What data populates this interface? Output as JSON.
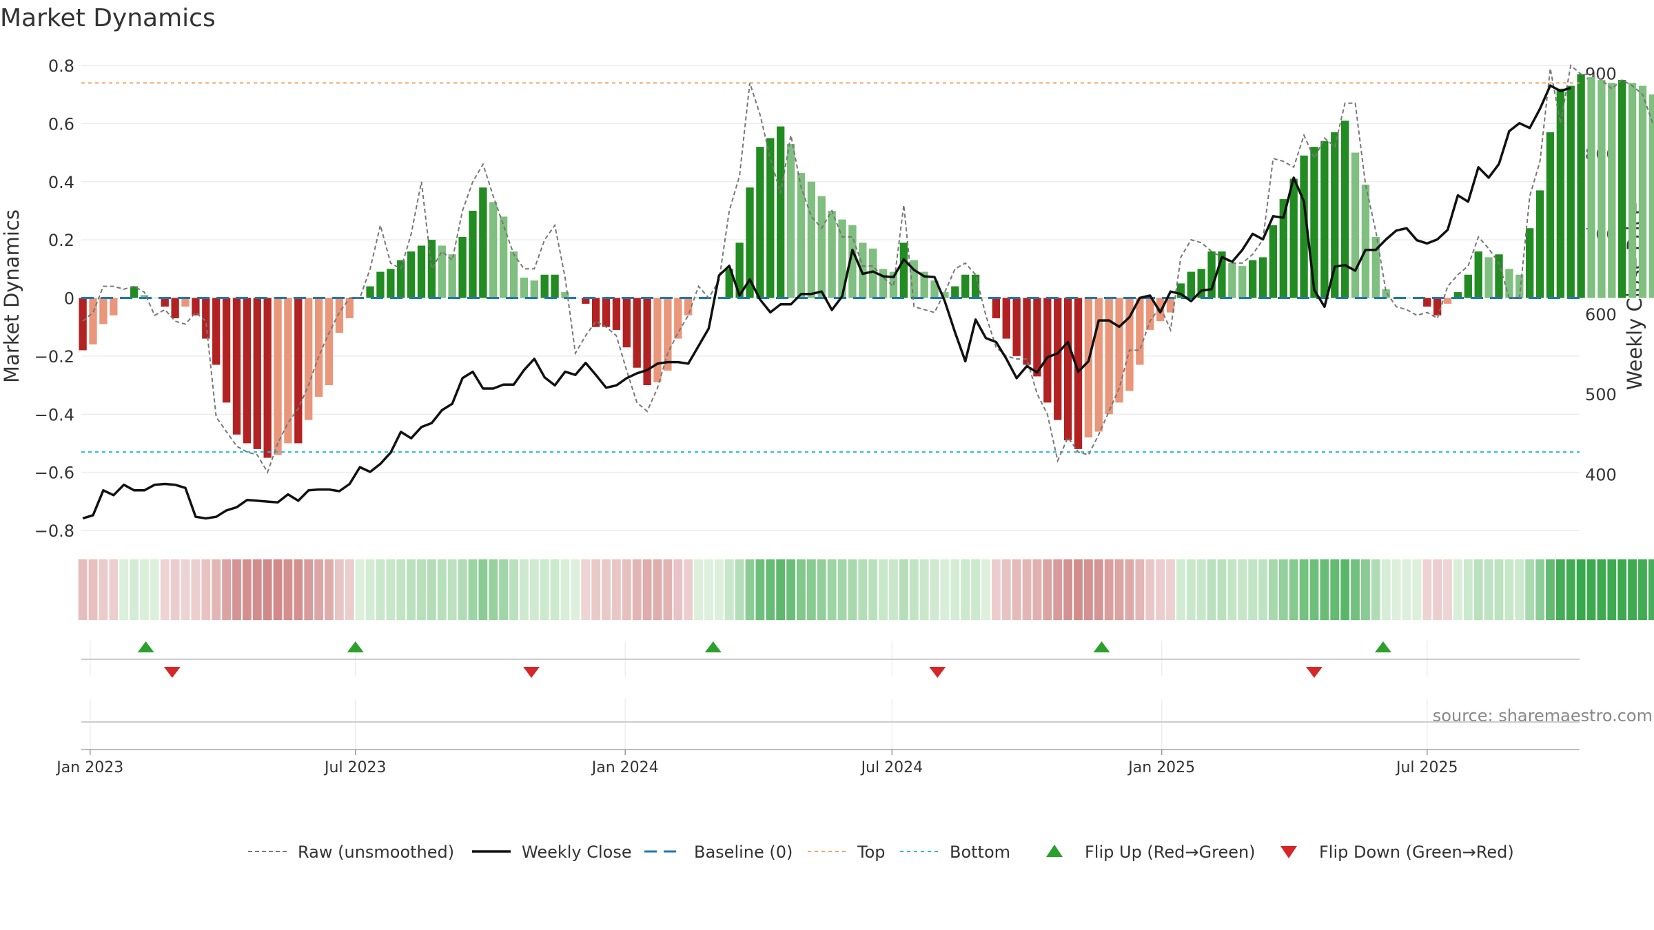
{
  "title": "Market Dynamics",
  "source_note": "source: sharemaestro.com",
  "chart_data": {
    "type": "bar",
    "title": "Market Dynamics",
    "ylabel": "Market Dynamics",
    "y2label": "Weekly Close Price",
    "ylim": [
      -0.8,
      0.8
    ],
    "y2lim": [
      330,
      910
    ],
    "yticks": [
      "0.8",
      "0.6",
      "0.4",
      "0.2",
      "0",
      "−0.2",
      "−0.4",
      "−0.6",
      "−0.8"
    ],
    "y2ticks": [
      "900",
      "800",
      "700",
      "600",
      "500",
      "400"
    ],
    "x_start": "2022-12-26",
    "x_end": "2025-10-13",
    "xticks": [
      {
        "date": "2023-01-01",
        "label": "Jan 2023"
      },
      {
        "date": "2023-07-01",
        "label": "Jul 2023"
      },
      {
        "date": "2024-01-01",
        "label": "Jan 2024"
      },
      {
        "date": "2024-07-01",
        "label": "Jul 2024"
      },
      {
        "date": "2025-01-01",
        "label": "Jan 2025"
      },
      {
        "date": "2025-07-01",
        "label": "Jul 2025"
      }
    ],
    "first_week": "2022-12-27",
    "top_threshold": 0.74,
    "bottom_threshold": -0.53,
    "baseline": 0,
    "colors": {
      "strong_green": "#228b22",
      "weak_green": "#7fbf7f",
      "strong_red": "#b22222",
      "weak_red": "#e9967a",
      "close": "#111111",
      "raw": "#777777",
      "baseline": "#1f77b4",
      "top": "#f4a460",
      "bottom": "#17becf",
      "flip_up": "#2ca02c",
      "flip_down": "#d62728"
    },
    "dynamics": [
      -0.18,
      -0.16,
      -0.09,
      -0.06,
      0.0,
      0.04,
      0.01,
      0.0,
      -0.03,
      -0.07,
      -0.03,
      -0.06,
      -0.14,
      -0.23,
      -0.36,
      -0.47,
      -0.5,
      -0.52,
      -0.55,
      -0.54,
      -0.5,
      -0.5,
      -0.42,
      -0.34,
      -0.3,
      -0.12,
      -0.07,
      0.0,
      0.04,
      0.09,
      0.1,
      0.13,
      0.16,
      0.18,
      0.2,
      0.18,
      0.15,
      0.21,
      0.3,
      0.38,
      0.33,
      0.28,
      0.16,
      0.07,
      0.06,
      0.08,
      0.08,
      0.02,
      0.0,
      -0.02,
      -0.1,
      -0.1,
      -0.11,
      -0.17,
      -0.24,
      -0.3,
      -0.29,
      -0.25,
      -0.14,
      -0.06,
      0.0,
      0.0,
      0.0,
      0.1,
      0.19,
      0.38,
      0.52,
      0.55,
      0.59,
      0.53,
      0.43,
      0.4,
      0.35,
      0.3,
      0.27,
      0.25,
      0.19,
      0.17,
      0.1,
      0.09,
      0.19,
      0.13,
      0.09,
      0.06,
      0.02,
      0.04,
      0.08,
      0.08,
      0.0,
      -0.07,
      -0.14,
      -0.2,
      -0.23,
      -0.27,
      -0.36,
      -0.42,
      -0.49,
      -0.52,
      -0.48,
      -0.46,
      -0.4,
      -0.36,
      -0.32,
      -0.23,
      -0.11,
      -0.08,
      -0.05,
      0.05,
      0.09,
      0.1,
      0.16,
      0.16,
      0.12,
      0.11,
      0.13,
      0.14,
      0.25,
      0.34,
      0.41,
      0.49,
      0.52,
      0.54,
      0.57,
      0.61,
      0.5,
      0.39,
      0.21,
      0.03,
      0.0,
      0.0,
      0.0,
      -0.03,
      -0.06,
      -0.02,
      0.02,
      0.08,
      0.16,
      0.14,
      0.15,
      0.1,
      0.08,
      0.24,
      0.37,
      0.57,
      0.72,
      0.73,
      0.77,
      0.76,
      0.75,
      0.74,
      0.75,
      0.74,
      0.73,
      0.7
    ],
    "raw": [
      -0.08,
      -0.05,
      0.04,
      0.04,
      0.03,
      0.04,
      0.02,
      -0.06,
      -0.04,
      -0.08,
      -0.09,
      -0.05,
      -0.08,
      -0.41,
      -0.46,
      -0.51,
      -0.53,
      -0.54,
      -0.6,
      -0.5,
      -0.43,
      -0.38,
      -0.3,
      -0.2,
      -0.12,
      -0.05,
      0.0,
      0.0,
      0.1,
      0.25,
      0.12,
      0.1,
      0.22,
      0.4,
      0.1,
      0.16,
      0.13,
      0.3,
      0.4,
      0.46,
      0.35,
      0.25,
      0.15,
      0.1,
      0.1,
      0.2,
      0.25,
      0.07,
      -0.19,
      -0.13,
      -0.08,
      -0.1,
      -0.13,
      -0.25,
      -0.36,
      -0.39,
      -0.31,
      -0.19,
      -0.12,
      -0.06,
      0.04,
      0.0,
      0.06,
      0.3,
      0.42,
      0.74,
      0.63,
      0.48,
      0.36,
      0.56,
      0.38,
      0.28,
      0.24,
      0.3,
      0.21,
      0.21,
      0.11,
      0.11,
      0.07,
      0.04,
      0.32,
      -0.03,
      -0.04,
      -0.05,
      0.02,
      0.1,
      0.12,
      0.08,
      -0.06,
      -0.17,
      -0.2,
      -0.21,
      -0.21,
      -0.33,
      -0.4,
      -0.56,
      -0.48,
      -0.53,
      -0.54,
      -0.47,
      -0.39,
      -0.31,
      -0.18,
      -0.18,
      -0.08,
      -0.03,
      -0.11,
      0.14,
      0.2,
      0.19,
      0.16,
      0.14,
      0.12,
      0.12,
      0.15,
      0.2,
      0.48,
      0.47,
      0.45,
      0.56,
      0.48,
      0.55,
      0.52,
      0.67,
      0.67,
      0.39,
      0.23,
      0.02,
      -0.03,
      -0.04,
      -0.06,
      -0.05,
      -0.07,
      0.04,
      0.08,
      0.11,
      0.21,
      0.17,
      0.12,
      0.0,
      0.0,
      0.35,
      0.47,
      0.79,
      0.6,
      0.8,
      0.77,
      0.77,
      0.75,
      0.72,
      0.75,
      0.73,
      0.7,
      0.6
    ],
    "close": [
      345,
      349,
      380,
      374,
      387,
      380,
      380,
      387,
      388,
      387,
      383,
      347,
      345,
      347,
      355,
      359,
      368,
      367,
      366,
      365,
      375,
      367,
      380,
      381,
      381,
      379,
      388,
      409,
      403,
      413,
      427,
      453,
      445,
      459,
      464,
      480,
      488,
      520,
      528,
      507,
      507,
      512,
      512,
      530,
      544,
      521,
      511,
      528,
      524,
      539,
      524,
      508,
      511,
      520,
      526,
      530,
      538,
      540,
      540,
      538,
      560,
      582,
      648,
      660,
      623,
      643,
      618,
      602,
      612,
      612,
      625,
      625,
      628,
      605,
      622,
      680,
      650,
      653,
      647,
      646,
      668,
      655,
      647,
      646,
      616,
      577,
      541,
      593,
      570,
      565,
      544,
      520,
      535,
      527,
      546,
      551,
      565,
      528,
      541,
      592,
      592,
      584,
      596,
      620,
      623,
      602,
      628,
      625,
      616,
      629,
      631,
      671,
      665,
      680,
      700,
      693,
      722,
      720,
      770,
      740,
      630,
      609,
      659,
      661,
      654,
      680,
      680,
      693,
      704,
      707,
      692,
      688,
      693,
      705,
      748,
      740,
      783,
      770,
      787,
      828,
      838,
      832,
      856,
      885,
      878,
      882
    ],
    "flips_up": [
      "2023-02-08",
      "2023-07-01",
      "2024-03-01",
      "2024-11-21",
      "2025-06-01"
    ],
    "flips_down": [
      "2023-02-26",
      "2023-10-29",
      "2024-08-01",
      "2025-04-15"
    ],
    "legend": [
      {
        "key": "raw",
        "label": "Raw (unsmoothed)"
      },
      {
        "key": "close",
        "label": "Weekly Close"
      },
      {
        "key": "baseline",
        "label": "Baseline (0)"
      },
      {
        "key": "top",
        "label": "Top"
      },
      {
        "key": "bottom",
        "label": "Bottom"
      },
      {
        "key": "flip_up",
        "label": "Flip Up (Red→Green)"
      },
      {
        "key": "flip_down",
        "label": "Flip Down (Green→Red)"
      }
    ]
  }
}
